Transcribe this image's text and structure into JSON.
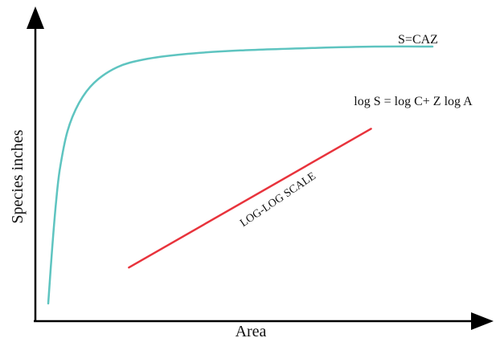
{
  "chart_data": {
    "type": "line",
    "xlabel": "Area",
    "ylabel": "Species inches",
    "grid": false,
    "legend": "none",
    "series": [
      {
        "name": "S=CAZ",
        "color": "#5ec4c0",
        "x": [
          0,
          1,
          2,
          3,
          5,
          8,
          12,
          18,
          25,
          35,
          50,
          70,
          85,
          100
        ],
        "y": [
          0,
          21,
          39,
          52,
          67,
          78,
          86,
          92,
          95,
          97,
          98.5,
          99.5,
          100,
          100
        ]
      },
      {
        "name": "log S =  log C+ Z log A",
        "color": "#e8333c",
        "x": [
          21,
          84
        ],
        "y": [
          14,
          68
        ]
      }
    ],
    "annotations": [
      {
        "text": "LOG-LOG SCALE"
      }
    ]
  }
}
